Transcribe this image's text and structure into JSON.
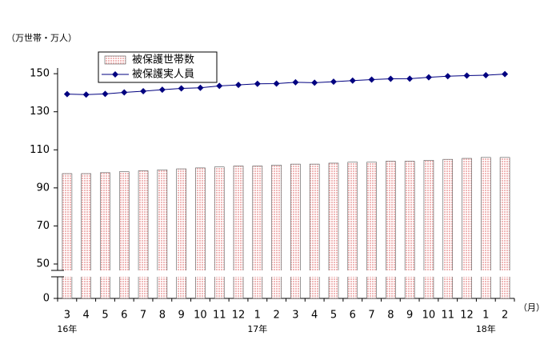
{
  "chart_data": {
    "type": "bar_line",
    "unit_label": "（万世帯・万人）",
    "x_unit_label": "（月）",
    "categories": [
      "3",
      "4",
      "5",
      "6",
      "7",
      "8",
      "9",
      "10",
      "11",
      "12",
      "1",
      "2",
      "3",
      "4",
      "5",
      "6",
      "7",
      "8",
      "9",
      "10",
      "11",
      "12",
      "1",
      "2"
    ],
    "x_sublabels": [
      "16年",
      null,
      null,
      null,
      null,
      null,
      null,
      null,
      null,
      null,
      "17年",
      null,
      null,
      null,
      null,
      null,
      null,
      null,
      null,
      null,
      null,
      null,
      "18年",
      null
    ],
    "series": [
      {
        "name": "被保護世帯数",
        "kind": "bar",
        "color": "#f0b8b8",
        "values": [
          97.5,
          97.5,
          98,
          98.5,
          99,
          99.5,
          100,
          100.5,
          101,
          101.5,
          101.5,
          102,
          102.5,
          102.5,
          103,
          103.5,
          103.5,
          104,
          104,
          104.5,
          105,
          105.5,
          106,
          106
        ]
      },
      {
        "name": "被保護実人員",
        "kind": "line",
        "color": "#000080",
        "values": [
          139.3,
          139,
          139.4,
          140.2,
          140.8,
          141.6,
          142.3,
          142.6,
          143.6,
          144.1,
          144.7,
          144.8,
          145.5,
          145.3,
          145.8,
          146.4,
          146.9,
          147.3,
          147.4,
          148.1,
          148.7,
          149,
          149.2,
          149.8
        ]
      }
    ],
    "ylim": [
      0,
      153
    ],
    "yticks": [
      0,
      50,
      70,
      90,
      110,
      130,
      150
    ],
    "axis_break": true,
    "legend": "top-left"
  }
}
